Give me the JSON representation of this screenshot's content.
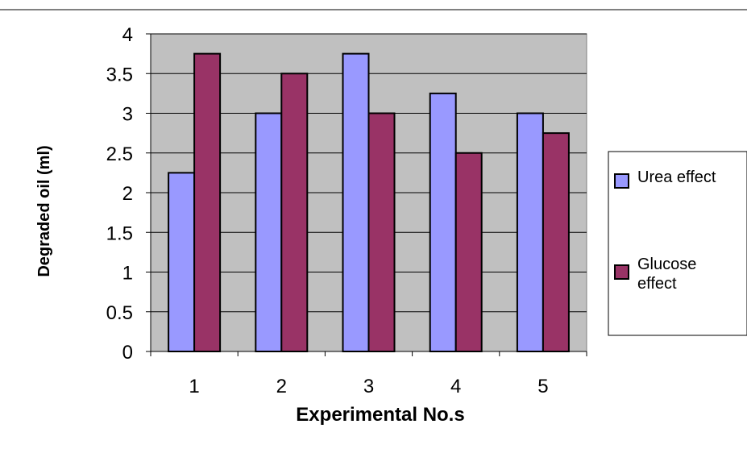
{
  "chart_data": {
    "type": "bar",
    "title": "",
    "xlabel": "Experimental No.s",
    "ylabel": "Degraded oil (ml)",
    "categories": [
      "1",
      "2",
      "3",
      "4",
      "5"
    ],
    "series": [
      {
        "name": "Urea effect",
        "values": [
          2.25,
          3.0,
          3.75,
          3.25,
          3.0
        ],
        "color": "#9999ff"
      },
      {
        "name": "Glucose effect",
        "values": [
          3.75,
          3.5,
          3.0,
          2.5,
          2.75
        ],
        "color": "#993366"
      }
    ],
    "ylim": [
      0,
      4
    ],
    "yticks": [
      "0",
      "0.5",
      "1",
      "1.5",
      "2",
      "2.5",
      "3",
      "3.5",
      "4"
    ],
    "grid": true,
    "plot_background": "#c0c0c0",
    "legend_position": "right",
    "legend": [
      {
        "lines": [
          "Urea effect"
        ]
      },
      {
        "lines": [
          "Glucose",
          "effect"
        ]
      }
    ]
  }
}
